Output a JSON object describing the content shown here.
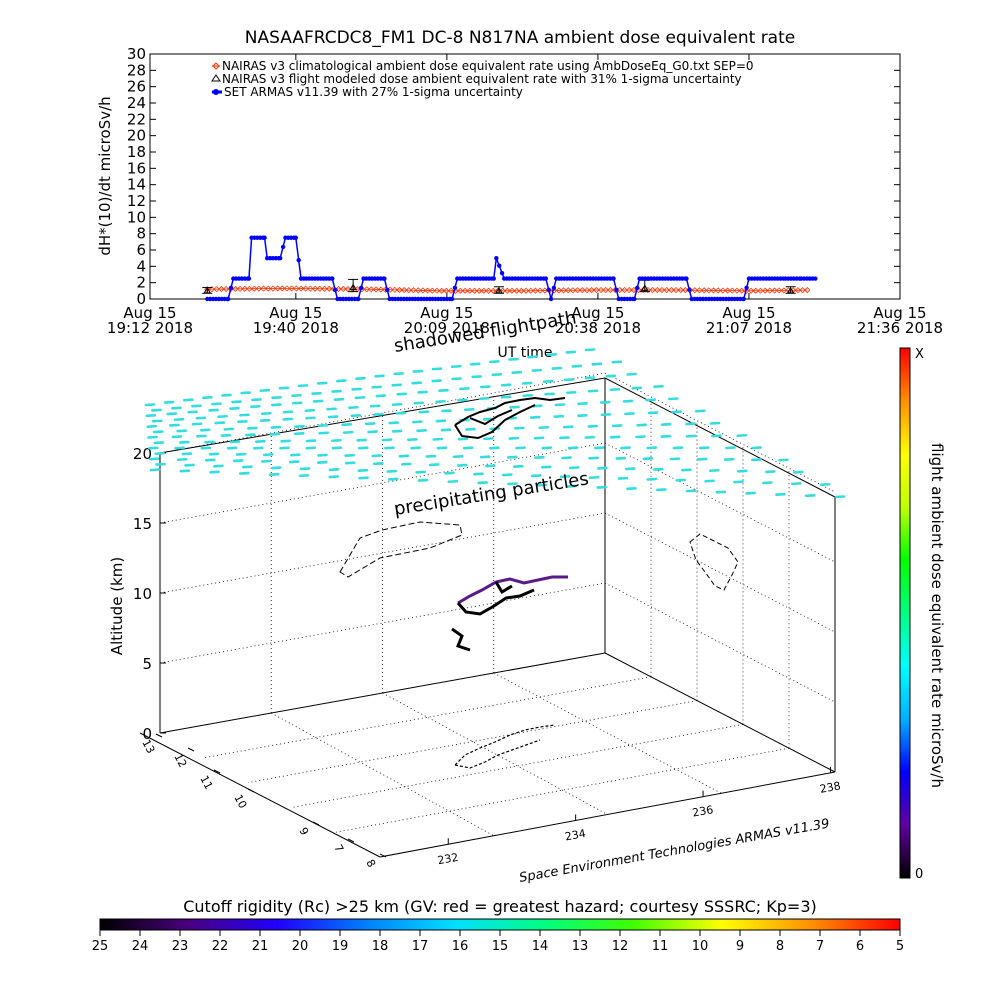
{
  "chart_data": [
    {
      "type": "line",
      "title": "NASAAFRCDC8_FM1 DC-8   N817NA ambient dose equivalent rate",
      "xlabel": "UT time",
      "ylabel": "dH*(10)/dt microSv/h",
      "ylim": [
        0,
        30
      ],
      "yticks": [
        0,
        2,
        4,
        6,
        8,
        10,
        12,
        14,
        16,
        18,
        20,
        22,
        24,
        26,
        28,
        30
      ],
      "xticks": [
        {
          "t": 0,
          "line1": "Aug 15",
          "line2": "19:12 2018"
        },
        {
          "t": 28,
          "line1": "Aug 15",
          "line2": "19:40 2018"
        },
        {
          "t": 57,
          "line1": "Aug 15",
          "line2": "20:09 2018"
        },
        {
          "t": 86,
          "line1": "Aug 15",
          "line2": "20:38 2018"
        },
        {
          "t": 115,
          "line1": "Aug 15",
          "line2": "21:07 2018"
        },
        {
          "t": 144,
          "line1": "Aug 15",
          "line2": "21:36 2018"
        }
      ],
      "legend_position": "top-left",
      "series": [
        {
          "name": "NAIRAS v3 climatological ambient dose equivalent rate using AmbDoseEq_G0.txt SEP=0",
          "color": "#ff3300",
          "marker": "diamond",
          "x": [
            11,
            26,
            41,
            56,
            71,
            86,
            101,
            116,
            127
          ],
          "y": [
            1.2,
            1.3,
            1.2,
            1.0,
            1.0,
            1.1,
            1.1,
            1.0,
            1.1
          ]
        },
        {
          "name": "NAIRAS v3 flight modeled dose ambient equivalent rate with 31% 1-sigma uncertainty",
          "color": "#000000",
          "marker": "triangle",
          "x": [
            11,
            39,
            67,
            95,
            123
          ],
          "y": [
            1.0,
            1.4,
            1.0,
            1.3,
            1.0
          ],
          "err_low": [
            0.7,
            0.9,
            0.7,
            0.9,
            0.7
          ],
          "err_high": [
            1.4,
            2.4,
            1.5,
            2.3,
            1.5
          ]
        },
        {
          "name": "SET ARMAS v11.39 with 27% 1-sigma uncertainty",
          "color": "#0000ff",
          "marker": "dot",
          "x": [
            11,
            15,
            16,
            19,
            19.5,
            22,
            22.5,
            25,
            26,
            28,
            29,
            30,
            35,
            36,
            40,
            41,
            45,
            46,
            58,
            59,
            66,
            66.5,
            68,
            69,
            76,
            77,
            78,
            79,
            89,
            90,
            93,
            94,
            103,
            104,
            114,
            115,
            122,
            125,
            128
          ],
          "y": [
            0,
            0,
            2.5,
            2.5,
            7.5,
            7.5,
            5.0,
            5.0,
            7.5,
            7.5,
            2.5,
            2.5,
            2.5,
            0,
            0,
            2.5,
            2.5,
            0,
            0,
            2.5,
            2.5,
            5.0,
            2.5,
            2.5,
            2.5,
            0,
            2.5,
            2.5,
            2.5,
            0,
            0,
            2.5,
            2.5,
            0,
            0,
            2.5,
            2.5,
            2.5,
            2.5
          ]
        }
      ]
    },
    {
      "type": "scatter",
      "annotations": [
        "shadowed flightpath",
        "precipitating particles"
      ],
      "zlabel": "Altitude (km)",
      "zticks": [
        "0",
        "5",
        "10",
        "15",
        "20"
      ],
      "lon_ticks": [
        "232",
        "234",
        "236",
        "238"
      ],
      "lat_ticks": [
        "8",
        "7",
        "9",
        "10",
        "11",
        "12",
        "13"
      ],
      "credit": "Space Environment Technologies ARMAS v11.39",
      "colorbar": {
        "label": "flight ambient dose equivalent rate microSv/h",
        "top": "X",
        "bottom": "0",
        "colors": [
          "#000000",
          "#6000a0",
          "#0000ff",
          "#00b0ff",
          "#00ffff",
          "#00ff80",
          "#00ff00",
          "#c0ff00",
          "#ffff00",
          "#ff9000",
          "#ff0000"
        ]
      },
      "particle_color": "#33dddd",
      "flight_color": "#5a1a8a"
    },
    {
      "type": "heatmap",
      "title": "Cutoff rigidity (Rc) >25 km (GV: red = greatest hazard; courtesy SSSRC; Kp=3)",
      "ticks": [
        "25",
        "24",
        "23",
        "22",
        "21",
        "20",
        "19",
        "18",
        "17",
        "16",
        "15",
        "14",
        "13",
        "12",
        "11",
        "10",
        "9",
        "8",
        "7",
        "6",
        "5"
      ],
      "colors": [
        "#000000",
        "#4a0080",
        "#2000ff",
        "#0080ff",
        "#00e0ff",
        "#00ff80",
        "#40ff00",
        "#ffff00",
        "#ff9000",
        "#ff0000"
      ]
    }
  ]
}
